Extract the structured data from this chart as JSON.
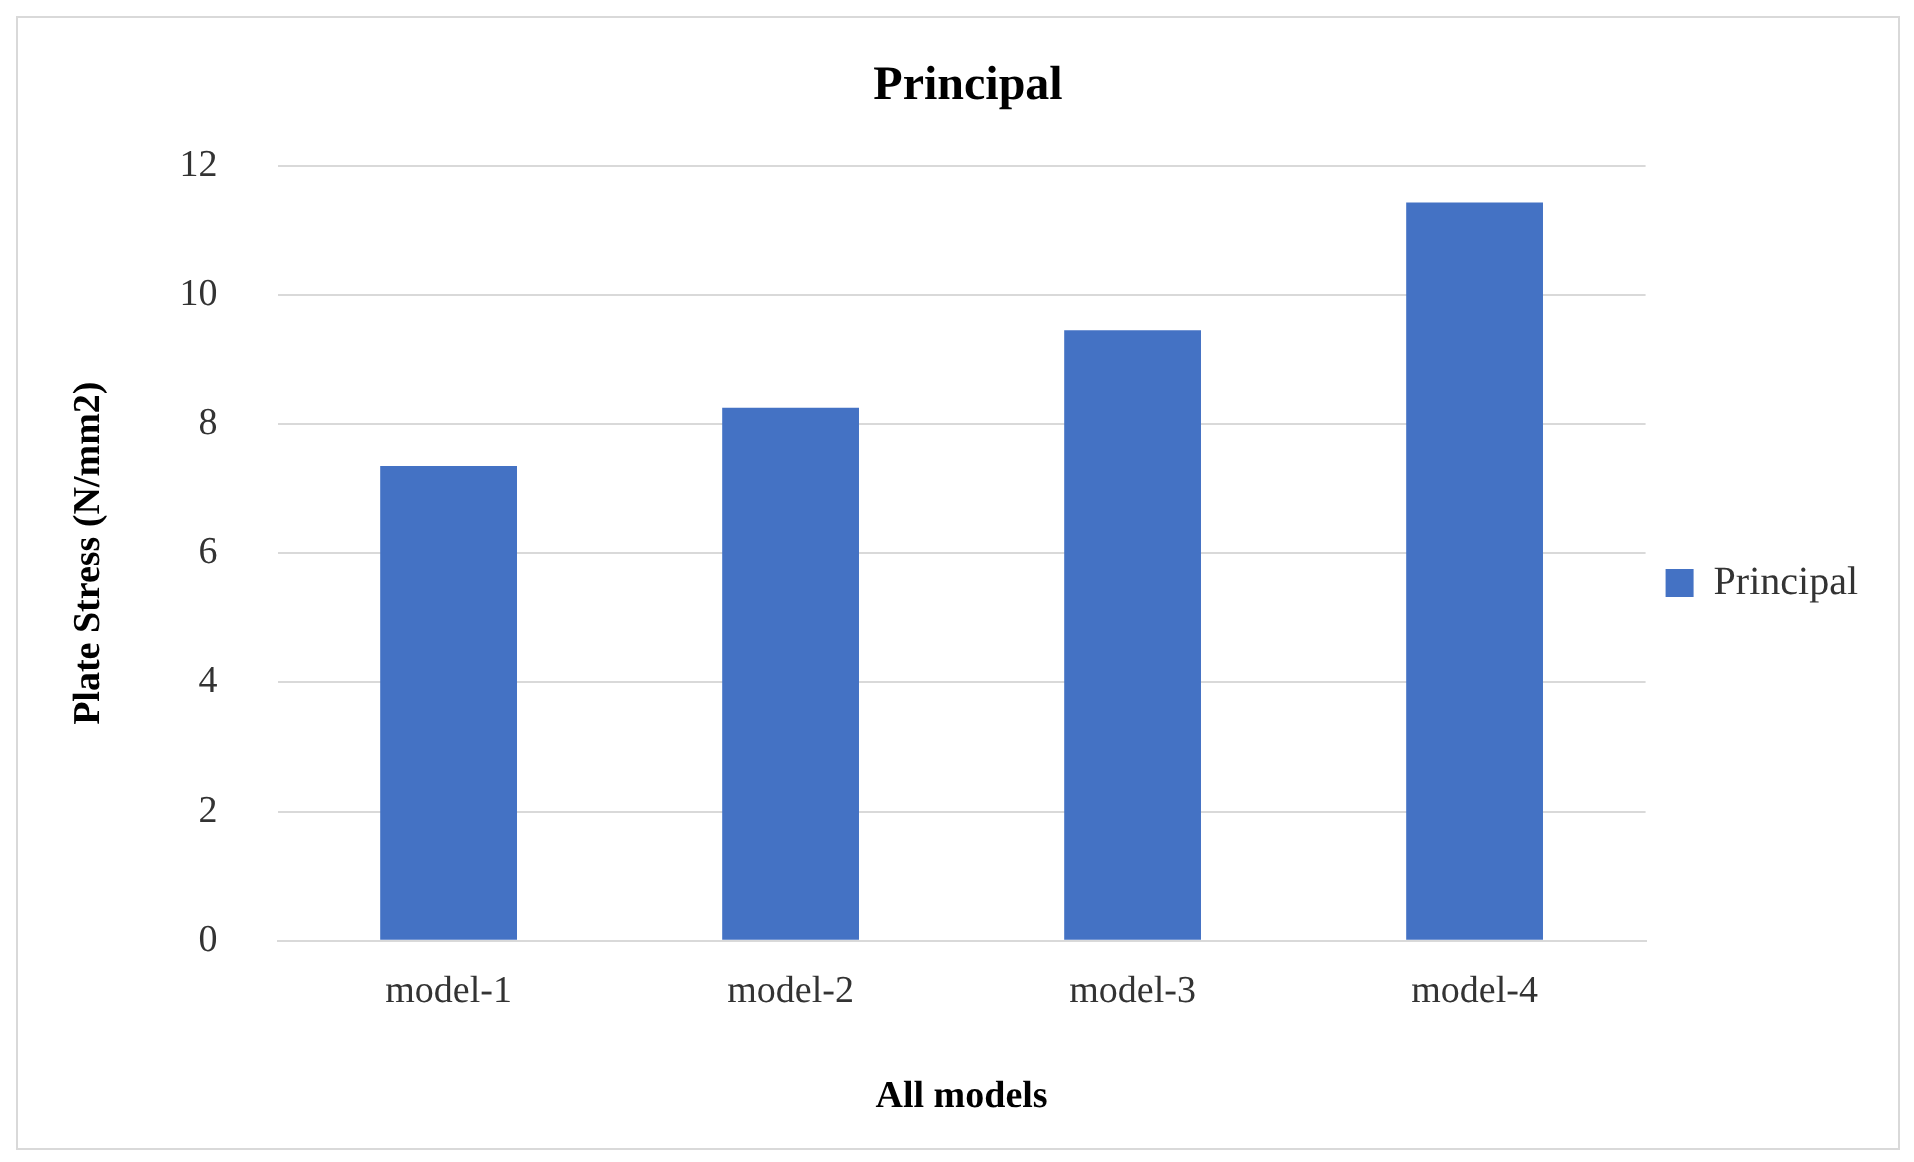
{
  "chart_data": {
    "type": "bar",
    "title": "Principal",
    "xlabel": "All models",
    "ylabel": "Plate Stress (N/mm2)",
    "categories": [
      "model-1",
      "model-2",
      "model-3",
      "model-4"
    ],
    "series": [
      {
        "name": "Principal",
        "color": "#4472c4",
        "values": [
          7.35,
          8.25,
          9.45,
          11.43
        ]
      }
    ],
    "ylim": [
      0,
      12
    ],
    "yticks": [
      0,
      2,
      4,
      6,
      8,
      10,
      12
    ],
    "grid": "y",
    "legend": "right"
  }
}
